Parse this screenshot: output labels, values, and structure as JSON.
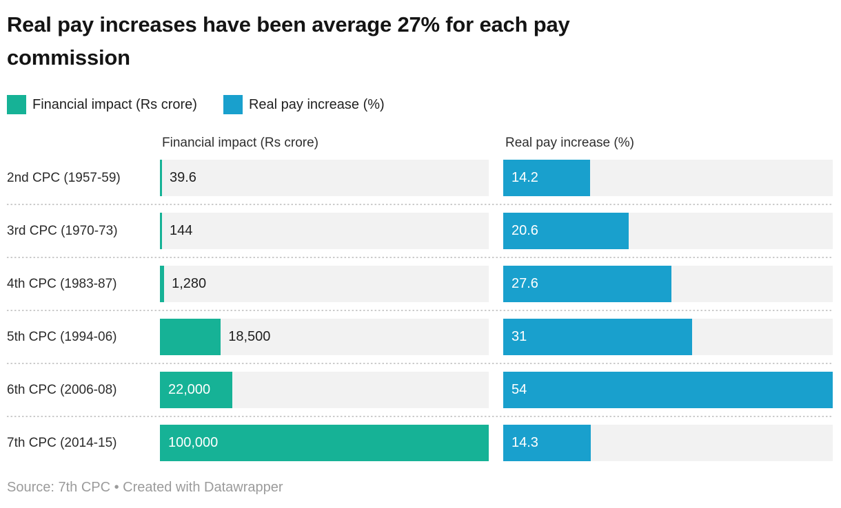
{
  "title": {
    "lines": [
      "Real pay increases have been average 27% for each pay",
      "commission"
    ]
  },
  "legend": {
    "items": [
      {
        "label": "Financial impact (Rs crore)",
        "color": "#16b296"
      },
      {
        "label": "Real pay increase (%)",
        "color": "#19a0cd"
      }
    ]
  },
  "columns": {
    "left_header": "Financial impact (Rs crore)",
    "right_header": "Real pay increase (%)"
  },
  "rows": [
    {
      "label": "2nd CPC (1957-59)",
      "fin": {
        "text": "39.6",
        "pct": 0.0396,
        "inside": false
      },
      "pay": {
        "text": "14.2",
        "pct": 26.3,
        "inside": true
      }
    },
    {
      "label": "3rd CPC (1970-73)",
      "fin": {
        "text": "144",
        "pct": 0.144,
        "inside": false
      },
      "pay": {
        "text": "20.6",
        "pct": 38.15,
        "inside": true
      }
    },
    {
      "label": "4th CPC (1983-87)",
      "fin": {
        "text": "1,280",
        "pct": 1.28,
        "inside": false
      },
      "pay": {
        "text": "27.6",
        "pct": 51.11,
        "inside": true
      }
    },
    {
      "label": "5th CPC (1994-06)",
      "fin": {
        "text": "18,500",
        "pct": 18.5,
        "inside": false
      },
      "pay": {
        "text": "31",
        "pct": 57.41,
        "inside": true
      }
    },
    {
      "label": "6th CPC (2006-08)",
      "fin": {
        "text": "22,000",
        "pct": 22.0,
        "inside": true
      },
      "pay": {
        "text": "54",
        "pct": 100,
        "inside": true
      }
    },
    {
      "label": "7th CPC (2014-15)",
      "fin": {
        "text": "100,000",
        "pct": 100,
        "inside": true
      },
      "pay": {
        "text": "14.3",
        "pct": 26.48,
        "inside": true
      }
    }
  ],
  "footer": {
    "text": "Source: 7th CPC • Created with Datawrapper"
  },
  "chart_data": {
    "type": "bar",
    "title": "Real pay increases have been average 27% for each pay commission",
    "categories": [
      "2nd CPC (1957-59)",
      "3rd CPC (1970-73)",
      "4th CPC (1983-87)",
      "5th CPC (1994-06)",
      "6th CPC (2006-08)",
      "7th CPC (2014-15)"
    ],
    "series": [
      {
        "name": "Financial impact (Rs crore)",
        "unit": "Rs crore",
        "color": "#16b296",
        "values": [
          39.6,
          144,
          1280,
          18500,
          22000,
          100000
        ],
        "value_labels": [
          "39.6",
          "144",
          "1,280",
          "18,500",
          "22,000",
          "100,000"
        ],
        "axis_max": 100000
      },
      {
        "name": "Real pay increase (%)",
        "unit": "%",
        "color": "#19a0cd",
        "values": [
          14.2,
          20.6,
          27.6,
          31,
          54,
          14.3
        ],
        "value_labels": [
          "14.2",
          "20.6",
          "27.6",
          "31",
          "54",
          "14.3"
        ],
        "axis_max": 54
      }
    ],
    "orientation": "horizontal",
    "legend_position": "top",
    "grid": false,
    "track_color": "#f2f2f2",
    "source": "Source: 7th CPC • Created with Datawrapper"
  }
}
